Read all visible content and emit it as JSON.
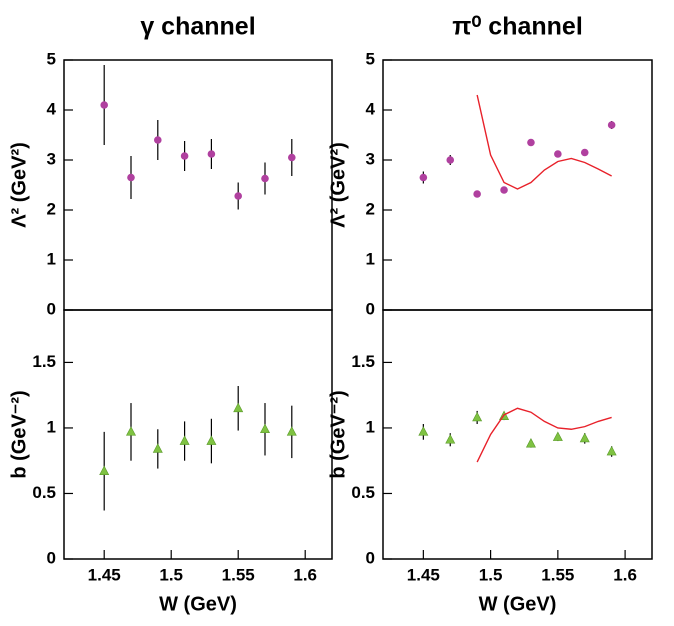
{
  "chart_data": [
    {
      "type": "scatter",
      "title": "γ channel",
      "y_label": "Λ² (GeV²)",
      "xlim": [
        1.42,
        1.62
      ],
      "ylim": [
        0,
        5
      ],
      "yticks": [
        0,
        1,
        2,
        3,
        4,
        5
      ],
      "series": [
        {
          "marker": "circle",
          "color": "#b0409f",
          "x": [
            1.45,
            1.47,
            1.49,
            1.51,
            1.53,
            1.55,
            1.57,
            1.59
          ],
          "values": [
            4.1,
            2.65,
            3.4,
            3.08,
            3.12,
            2.28,
            2.63,
            3.05
          ],
          "errors": [
            0.8,
            0.43,
            0.4,
            0.3,
            0.3,
            0.27,
            0.32,
            0.37
          ]
        }
      ]
    },
    {
      "type": "scatter",
      "title": "π⁰ channel",
      "y_label": "Λ² (GeV²)",
      "xlim": [
        1.42,
        1.62
      ],
      "ylim": [
        0,
        5
      ],
      "yticks": [
        0,
        1,
        2,
        3,
        4,
        5
      ],
      "series": [
        {
          "marker": "circle",
          "color": "#b0409f",
          "x": [
            1.45,
            1.47,
            1.49,
            1.51,
            1.53,
            1.55,
            1.57,
            1.59
          ],
          "values": [
            2.65,
            3.0,
            2.32,
            2.4,
            3.35,
            3.12,
            3.15,
            3.7
          ],
          "errors": [
            0.12,
            0.1,
            0.05,
            0.05,
            0.05,
            0.04,
            0.05,
            0.08
          ]
        },
        {
          "type": "line",
          "color": "#e8212a",
          "x": [
            1.49,
            1.5,
            1.51,
            1.52,
            1.53,
            1.54,
            1.55,
            1.56,
            1.57,
            1.58,
            1.59
          ],
          "values": [
            4.3,
            3.1,
            2.55,
            2.42,
            2.55,
            2.8,
            2.97,
            3.03,
            2.95,
            2.82,
            2.68
          ]
        }
      ]
    },
    {
      "type": "scatter",
      "y_label": "b (GeV⁻²)",
      "x_label": "W (GeV)",
      "xlim": [
        1.42,
        1.62
      ],
      "ylim": [
        0,
        1.9
      ],
      "xticks": [
        1.45,
        1.5,
        1.55,
        1.6
      ],
      "yticks": [
        0,
        0.5,
        1,
        1.5
      ],
      "series": [
        {
          "marker": "triangle",
          "color": "#7fc242",
          "x": [
            1.45,
            1.47,
            1.49,
            1.51,
            1.53,
            1.55,
            1.57,
            1.59
          ],
          "values": [
            0.67,
            0.97,
            0.84,
            0.9,
            0.9,
            1.15,
            0.99,
            0.97
          ],
          "errors": [
            0.3,
            0.22,
            0.15,
            0.15,
            0.17,
            0.17,
            0.2,
            0.2
          ]
        }
      ]
    },
    {
      "type": "scatter",
      "y_label": "b (GeV⁻²)",
      "x_label": "W (GeV)",
      "xlim": [
        1.42,
        1.62
      ],
      "ylim": [
        0,
        1.9
      ],
      "xticks": [
        1.45,
        1.5,
        1.55,
        1.6
      ],
      "yticks": [
        0,
        0.5,
        1,
        1.5
      ],
      "series": [
        {
          "marker": "triangle",
          "color": "#7fc242",
          "x": [
            1.45,
            1.47,
            1.49,
            1.51,
            1.53,
            1.55,
            1.57,
            1.59
          ],
          "values": [
            0.97,
            0.91,
            1.08,
            1.09,
            0.88,
            0.93,
            0.92,
            0.82
          ],
          "errors": [
            0.06,
            0.05,
            0.05,
            0.03,
            0.03,
            0.03,
            0.04,
            0.04
          ]
        },
        {
          "type": "line",
          "color": "#e8212a",
          "x": [
            1.49,
            1.5,
            1.51,
            1.52,
            1.53,
            1.54,
            1.55,
            1.56,
            1.57,
            1.58,
            1.59
          ],
          "values": [
            0.74,
            0.95,
            1.1,
            1.15,
            1.12,
            1.05,
            1.0,
            0.99,
            1.01,
            1.05,
            1.08
          ]
        }
      ]
    }
  ]
}
